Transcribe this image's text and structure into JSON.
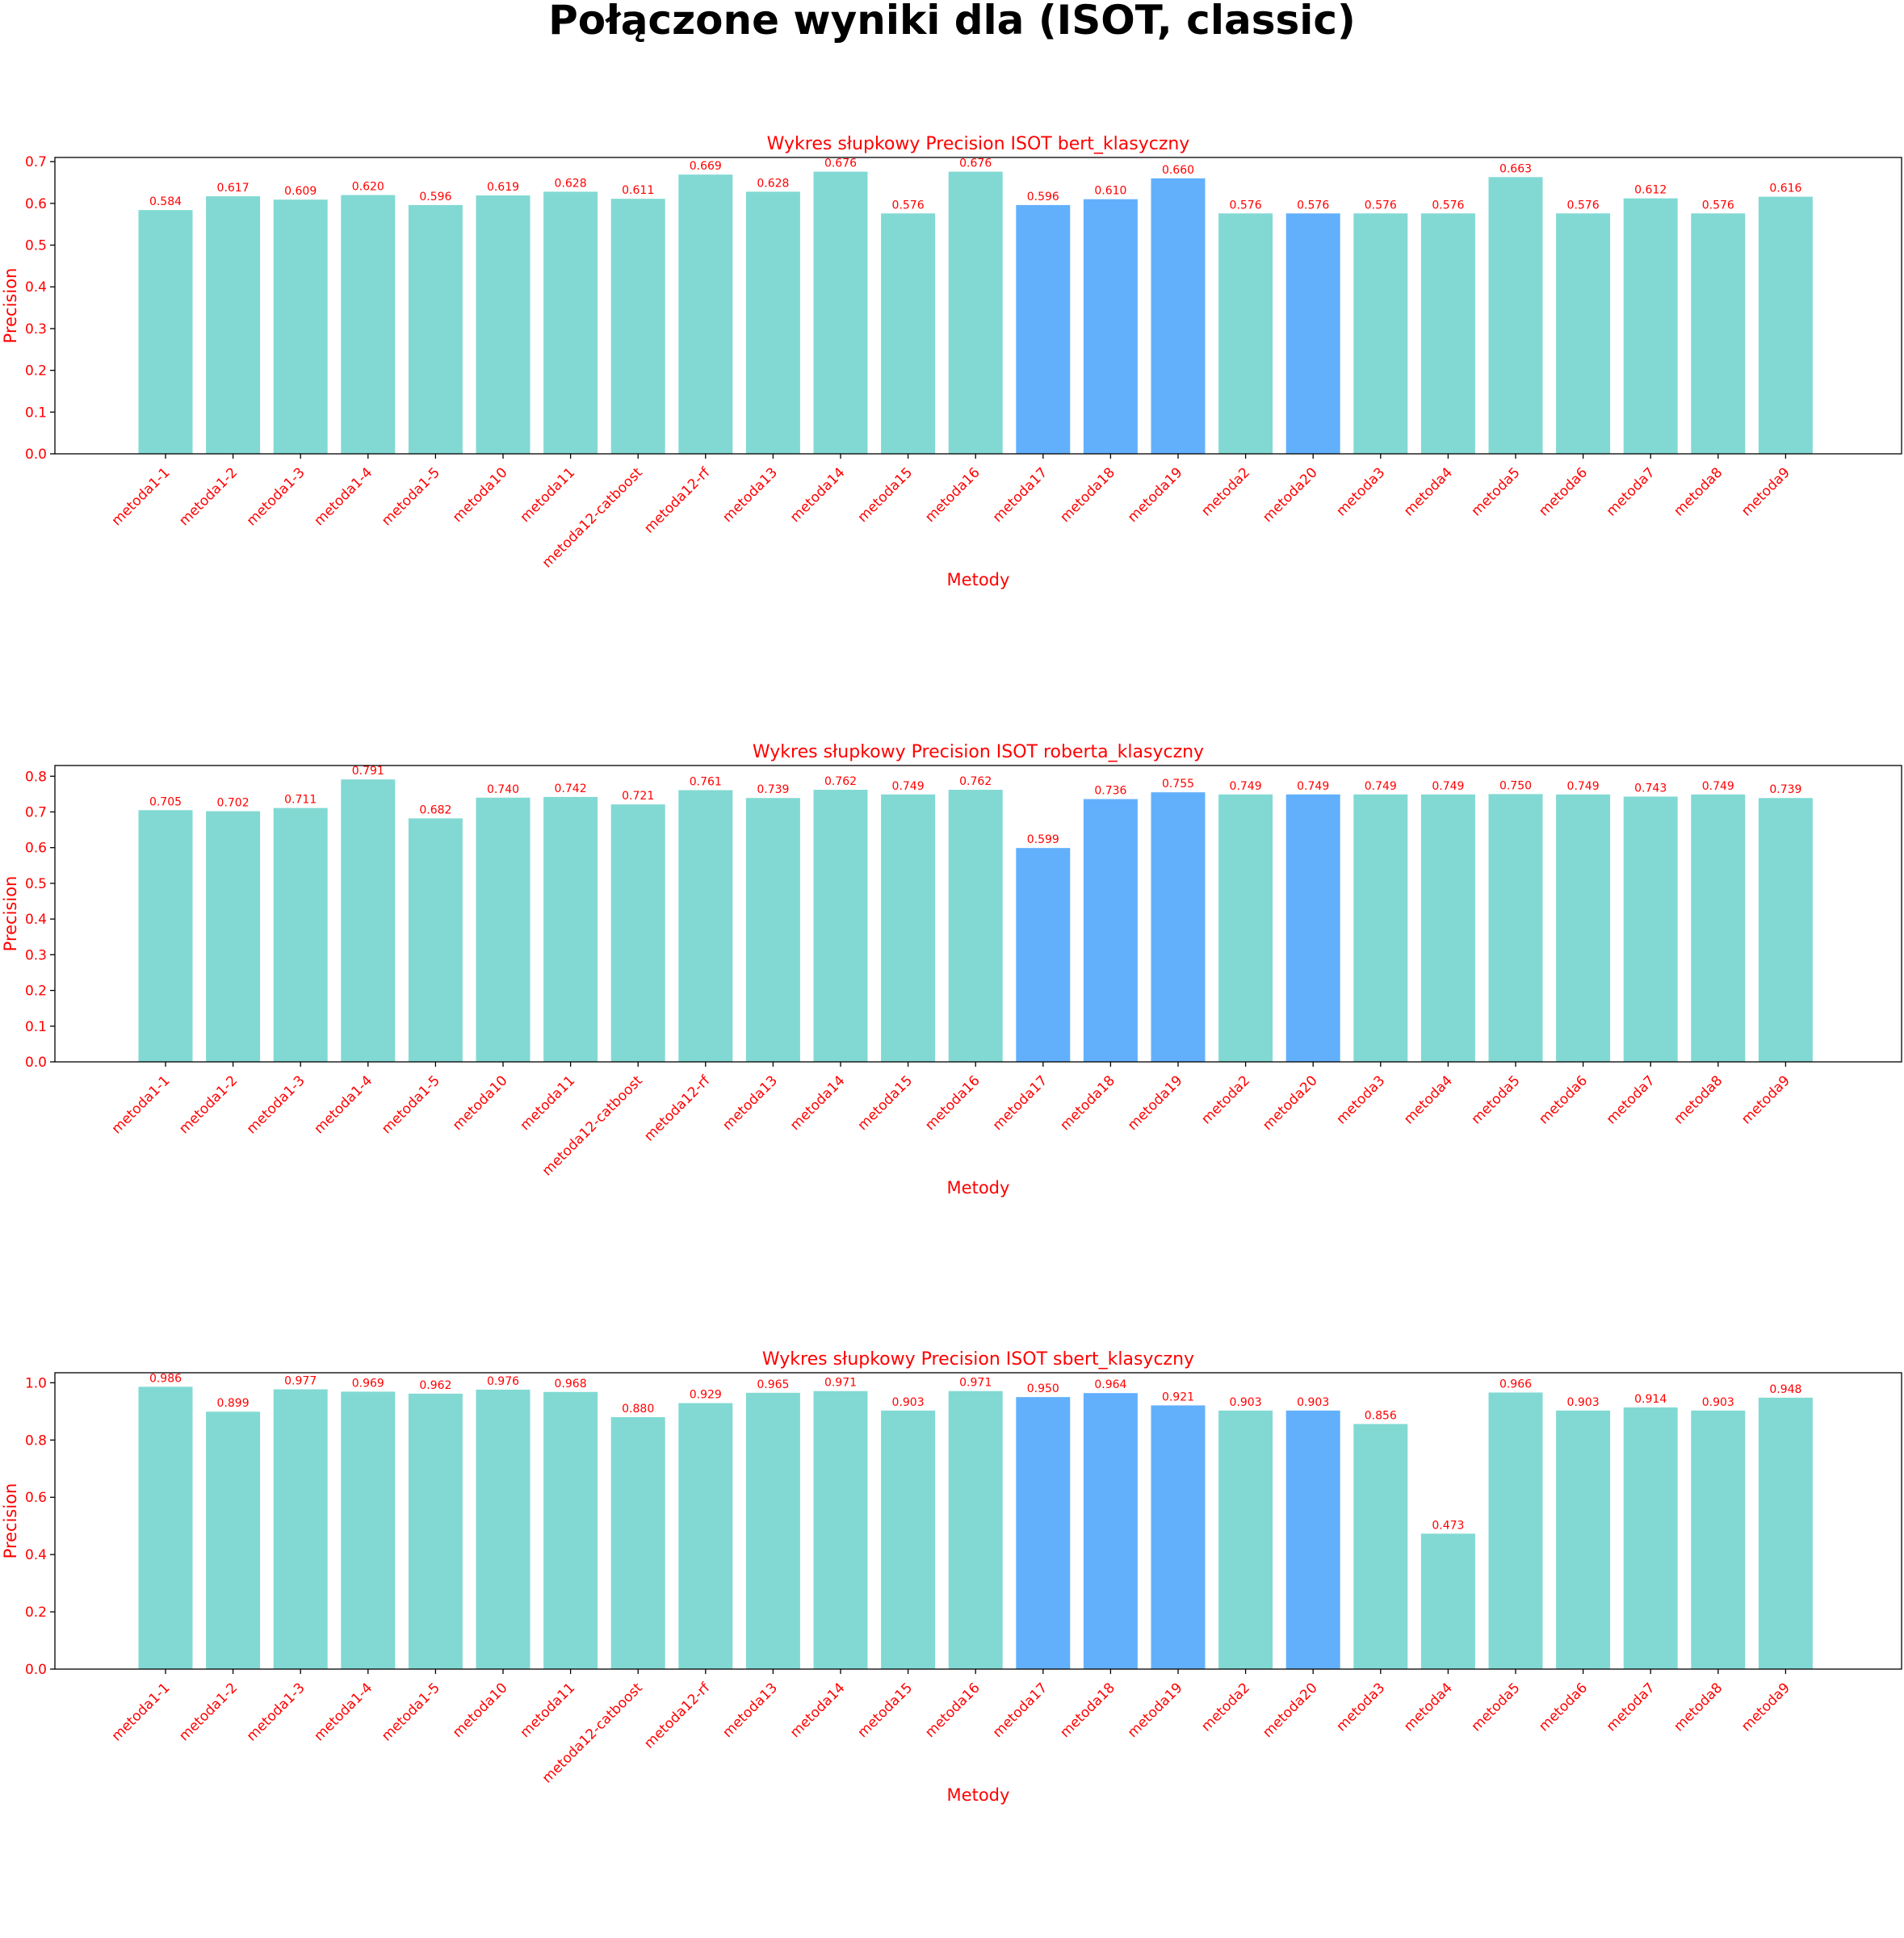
{
  "figure": {
    "title": "Połączone wyniki dla (ISOT, classic)"
  },
  "colors": {
    "bar_default": "#82d9d3",
    "bar_highlight": "#62b0fc",
    "text": "#ff0000",
    "axis": "#000000"
  },
  "chart_data": [
    {
      "type": "bar",
      "title": "Wykres słupkowy Precision ISOT bert_klasyczny",
      "xlabel": "Metody",
      "ylabel": "Precision",
      "ylim": [
        0,
        0.71
      ],
      "yticks": [
        "0.0",
        "0.1",
        "0.2",
        "0.3",
        "0.4",
        "0.5",
        "0.6",
        "0.7"
      ],
      "ytick_values": [
        0,
        0.1,
        0.2,
        0.3,
        0.4,
        0.5,
        0.6,
        0.7
      ],
      "categories": [
        "metoda1-1",
        "metoda1-2",
        "metoda1-3",
        "metoda1-4",
        "metoda1-5",
        "metoda10",
        "metoda11",
        "metoda12-catboost",
        "metoda12-rf",
        "metoda13",
        "metoda14",
        "metoda15",
        "metoda16",
        "metoda17",
        "metoda18",
        "metoda19",
        "metoda2",
        "metoda20",
        "metoda3",
        "metoda4",
        "metoda5",
        "metoda6",
        "metoda7",
        "metoda8",
        "metoda9"
      ],
      "values": [
        0.584,
        0.617,
        0.609,
        0.62,
        0.596,
        0.619,
        0.628,
        0.611,
        0.669,
        0.628,
        0.676,
        0.576,
        0.676,
        0.596,
        0.61,
        0.66,
        0.576,
        0.576,
        0.576,
        0.576,
        0.663,
        0.576,
        0.612,
        0.576,
        0.616
      ],
      "value_labels": [
        "0.584",
        "0.617",
        "0.609",
        "0.620",
        "0.596",
        "0.619",
        "0.628",
        "0.611",
        "0.669",
        "0.628",
        "0.676",
        "0.576",
        "0.676",
        "0.596",
        "0.610",
        "0.660",
        "0.576",
        "0.576",
        "0.576",
        "0.576",
        "0.663",
        "0.576",
        "0.612",
        "0.576",
        "0.616"
      ],
      "highlighted": [
        "metoda17",
        "metoda18",
        "metoda19",
        "metoda20"
      ],
      "grid": false,
      "legend": "none"
    },
    {
      "type": "bar",
      "title": "Wykres słupkowy Precision ISOT roberta_klasyczny",
      "xlabel": "Metody",
      "ylabel": "Precision",
      "ylim": [
        0,
        0.83
      ],
      "yticks": [
        "0.0",
        "0.1",
        "0.2",
        "0.3",
        "0.4",
        "0.5",
        "0.6",
        "0.7",
        "0.8"
      ],
      "ytick_values": [
        0,
        0.1,
        0.2,
        0.3,
        0.4,
        0.5,
        0.6,
        0.7,
        0.8
      ],
      "categories": [
        "metoda1-1",
        "metoda1-2",
        "metoda1-3",
        "metoda1-4",
        "metoda1-5",
        "metoda10",
        "metoda11",
        "metoda12-catboost",
        "metoda12-rf",
        "metoda13",
        "metoda14",
        "metoda15",
        "metoda16",
        "metoda17",
        "metoda18",
        "metoda19",
        "metoda2",
        "metoda20",
        "metoda3",
        "metoda4",
        "metoda5",
        "metoda6",
        "metoda7",
        "metoda8",
        "metoda9"
      ],
      "values": [
        0.705,
        0.702,
        0.711,
        0.791,
        0.682,
        0.74,
        0.742,
        0.721,
        0.761,
        0.739,
        0.762,
        0.749,
        0.762,
        0.599,
        0.736,
        0.755,
        0.749,
        0.749,
        0.749,
        0.749,
        0.75,
        0.749,
        0.743,
        0.749,
        0.739
      ],
      "value_labels": [
        "0.705",
        "0.702",
        "0.711",
        "0.791",
        "0.682",
        "0.740",
        "0.742",
        "0.721",
        "0.761",
        "0.739",
        "0.762",
        "0.749",
        "0.762",
        "0.599",
        "0.736",
        "0.755",
        "0.749",
        "0.749",
        "0.749",
        "0.749",
        "0.750",
        "0.749",
        "0.743",
        "0.749",
        "0.739"
      ],
      "highlighted": [
        "metoda17",
        "metoda18",
        "metoda19",
        "metoda20"
      ],
      "grid": false,
      "legend": "none"
    },
    {
      "type": "bar",
      "title": "Wykres słupkowy Precision ISOT sbert_klasyczny",
      "xlabel": "Metody",
      "ylabel": "Precision",
      "ylim": [
        0,
        1.035
      ],
      "yticks": [
        "0.0",
        "0.2",
        "0.4",
        "0.6",
        "0.8",
        "1.0"
      ],
      "ytick_values": [
        0,
        0.2,
        0.4,
        0.6,
        0.8,
        1.0
      ],
      "categories": [
        "metoda1-1",
        "metoda1-2",
        "metoda1-3",
        "metoda1-4",
        "metoda1-5",
        "metoda10",
        "metoda11",
        "metoda12-catboost",
        "metoda12-rf",
        "metoda13",
        "metoda14",
        "metoda15",
        "metoda16",
        "metoda17",
        "metoda18",
        "metoda19",
        "metoda2",
        "metoda20",
        "metoda3",
        "metoda4",
        "metoda5",
        "metoda6",
        "metoda7",
        "metoda8",
        "metoda9"
      ],
      "values": [
        0.986,
        0.899,
        0.977,
        0.969,
        0.962,
        0.976,
        0.968,
        0.88,
        0.929,
        0.965,
        0.971,
        0.903,
        0.971,
        0.95,
        0.964,
        0.921,
        0.903,
        0.903,
        0.856,
        0.473,
        0.966,
        0.903,
        0.914,
        0.903,
        0.948
      ],
      "value_labels": [
        "0.986",
        "0.899",
        "0.977",
        "0.969",
        "0.962",
        "0.976",
        "0.968",
        "0.880",
        "0.929",
        "0.965",
        "0.971",
        "0.903",
        "0.971",
        "0.950",
        "0.964",
        "0.921",
        "0.903",
        "0.903",
        "0.856",
        "0.473",
        "0.966",
        "0.903",
        "0.914",
        "0.903",
        "0.948"
      ],
      "highlighted": [
        "metoda17",
        "metoda18",
        "metoda19",
        "metoda20"
      ],
      "grid": false,
      "legend": "none"
    }
  ]
}
